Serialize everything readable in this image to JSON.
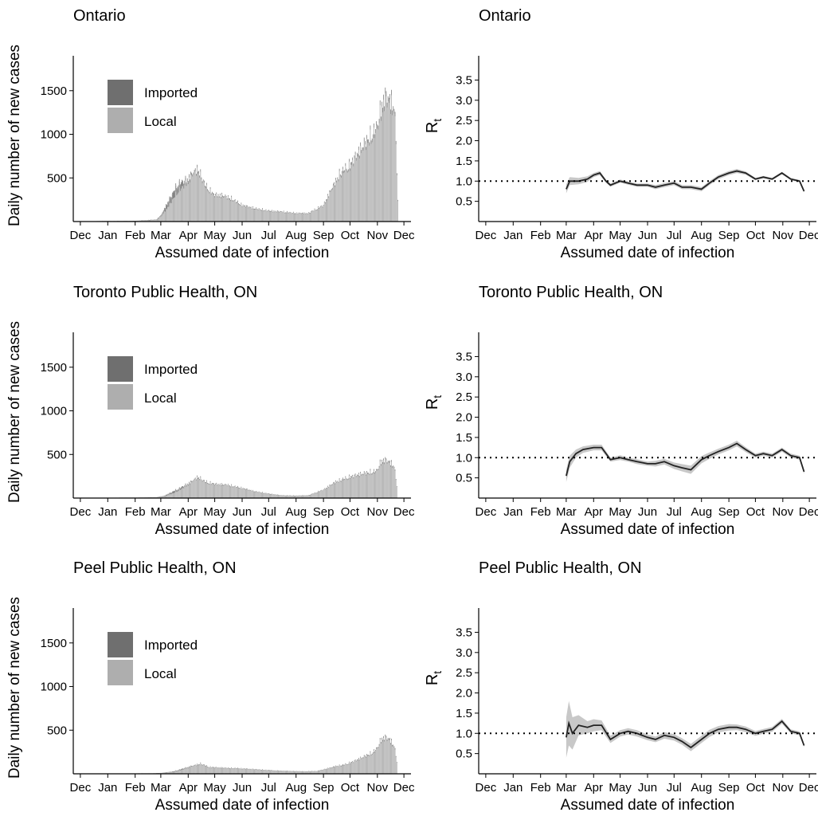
{
  "months": [
    "Dec",
    "Jan",
    "Feb",
    "Mar",
    "Apr",
    "May",
    "Jun",
    "Jul",
    "Aug",
    "Sep",
    "Oct",
    "Nov",
    "Dec"
  ],
  "colors": {
    "imported": "#6f6f6f",
    "local": "#aeaeae",
    "line": "#222222",
    "ribbon": "#c8c8c8",
    "axis": "#000000"
  },
  "chart_data": [
    {
      "type": "bar",
      "title": "Ontario",
      "xlabel": "Assumed date of infection",
      "ylabel": "Daily number of new cases",
      "yticks": [
        500,
        1000,
        1500
      ],
      "ylim": [
        0,
        1900
      ],
      "legend": {
        "position": "top-left",
        "entries": [
          "Imported",
          "Local"
        ]
      },
      "x": [
        "2019-12-20",
        "2020-01-01",
        "2020-02-01",
        "2020-02-25",
        "2020-03-01",
        "2020-03-10",
        "2020-03-20",
        "2020-03-31",
        "2020-04-05",
        "2020-04-12",
        "2020-04-20",
        "2020-04-30",
        "2020-05-10",
        "2020-05-20",
        "2020-06-01",
        "2020-06-15",
        "2020-07-01",
        "2020-07-15",
        "2020-08-01",
        "2020-08-15",
        "2020-09-01",
        "2020-09-10",
        "2020-09-20",
        "2020-10-01",
        "2020-10-10",
        "2020-10-20",
        "2020-10-31",
        "2020-11-05",
        "2020-11-10",
        "2020-11-15",
        "2020-11-20",
        "2020-11-22",
        "2020-11-24"
      ],
      "series": [
        {
          "name": "Imported",
          "values": [
            0,
            0,
            0,
            2,
            10,
            60,
            80,
            20,
            5,
            3,
            2,
            1,
            1,
            1,
            1,
            1,
            1,
            1,
            1,
            1,
            1,
            1,
            1,
            1,
            1,
            1,
            1,
            1,
            1,
            1,
            1,
            1,
            0
          ]
        },
        {
          "name": "Local",
          "values": [
            2,
            3,
            5,
            20,
            60,
            200,
            380,
            500,
            580,
            650,
            450,
            330,
            320,
            280,
            200,
            160,
            130,
            120,
            100,
            100,
            200,
            400,
            600,
            700,
            850,
            1000,
            1150,
            1400,
            1550,
            1500,
            1450,
            1000,
            250
          ]
        }
      ]
    },
    {
      "type": "line",
      "title": "Ontario",
      "xlabel": "Assumed date of infection",
      "ylabel": "R",
      "ylabel_subscript": "t",
      "yticks": [
        0.5,
        1.0,
        1.5,
        2.0,
        2.5,
        3.0,
        3.5
      ],
      "ylim": [
        0,
        4.1
      ],
      "reference_line": 1.0,
      "x": [
        "2020-03-01",
        "2020-03-05",
        "2020-03-15",
        "2020-03-25",
        "2020-04-01",
        "2020-04-08",
        "2020-04-15",
        "2020-04-20",
        "2020-05-01",
        "2020-05-10",
        "2020-05-20",
        "2020-06-01",
        "2020-06-10",
        "2020-06-20",
        "2020-07-01",
        "2020-07-10",
        "2020-07-20",
        "2020-08-01",
        "2020-08-10",
        "2020-08-20",
        "2020-09-01",
        "2020-09-10",
        "2020-09-20",
        "2020-10-01",
        "2020-10-10",
        "2020-10-20",
        "2020-10-31",
        "2020-11-10",
        "2020-11-20",
        "2020-11-25"
      ],
      "series": [
        {
          "name": "Rt",
          "values": [
            0.8,
            1.0,
            1.0,
            1.05,
            1.15,
            1.2,
            1.0,
            0.9,
            1.0,
            0.95,
            0.9,
            0.9,
            0.85,
            0.9,
            0.95,
            0.85,
            0.85,
            0.8,
            0.95,
            1.1,
            1.2,
            1.25,
            1.2,
            1.05,
            1.1,
            1.05,
            1.2,
            1.05,
            1.0,
            0.75
          ]
        },
        {
          "name": "Rt lower",
          "values": [
            0.7,
            0.9,
            0.92,
            0.98,
            1.1,
            1.15,
            0.96,
            0.86,
            0.96,
            0.91,
            0.86,
            0.86,
            0.8,
            0.85,
            0.9,
            0.8,
            0.8,
            0.75,
            0.9,
            1.05,
            1.15,
            1.2,
            1.16,
            1.02,
            1.07,
            1.02,
            1.17,
            1.02,
            0.97,
            0.72
          ]
        },
        {
          "name": "Rt upper",
          "values": [
            0.92,
            1.1,
            1.08,
            1.12,
            1.2,
            1.25,
            1.04,
            0.94,
            1.04,
            0.99,
            0.94,
            0.94,
            0.9,
            0.95,
            1.0,
            0.9,
            0.9,
            0.85,
            1.0,
            1.15,
            1.25,
            1.3,
            1.24,
            1.08,
            1.13,
            1.08,
            1.23,
            1.08,
            1.03,
            0.78
          ]
        }
      ]
    },
    {
      "type": "bar",
      "title": "Toronto Public Health, ON",
      "xlabel": "Assumed date of infection",
      "ylabel": "Daily number of new cases",
      "yticks": [
        500,
        1000,
        1500
      ],
      "ylim": [
        0,
        1900
      ],
      "legend": {
        "position": "top-left",
        "entries": [
          "Imported",
          "Local"
        ]
      },
      "x": [
        "2020-01-10",
        "2020-02-01",
        "2020-02-25",
        "2020-03-05",
        "2020-03-15",
        "2020-03-25",
        "2020-04-05",
        "2020-04-12",
        "2020-04-20",
        "2020-05-01",
        "2020-05-15",
        "2020-06-01",
        "2020-06-15",
        "2020-07-01",
        "2020-07-15",
        "2020-08-01",
        "2020-08-15",
        "2020-09-01",
        "2020-09-15",
        "2020-10-01",
        "2020-10-15",
        "2020-10-31",
        "2020-11-05",
        "2020-11-10",
        "2020-11-15",
        "2020-11-20",
        "2020-11-23"
      ],
      "series": [
        {
          "name": "Imported",
          "values": [
            0,
            0,
            1,
            5,
            20,
            15,
            3,
            2,
            1,
            1,
            1,
            1,
            1,
            1,
            1,
            1,
            1,
            1,
            1,
            1,
            1,
            1,
            1,
            1,
            1,
            1,
            0
          ]
        },
        {
          "name": "Local",
          "values": [
            1,
            2,
            5,
            20,
            60,
            120,
            200,
            260,
            200,
            170,
            160,
            120,
            80,
            50,
            30,
            25,
            30,
            100,
            200,
            260,
            300,
            330,
            450,
            470,
            440,
            400,
            150
          ]
        }
      ]
    },
    {
      "type": "line",
      "title": "Toronto Public Health, ON",
      "xlabel": "Assumed date of infection",
      "ylabel": "R",
      "ylabel_subscript": "t",
      "yticks": [
        0.5,
        1.0,
        1.5,
        2.0,
        2.5,
        3.0,
        3.5
      ],
      "ylim": [
        0,
        4.1
      ],
      "reference_line": 1.0,
      "x": [
        "2020-03-01",
        "2020-03-05",
        "2020-03-12",
        "2020-03-20",
        "2020-04-01",
        "2020-04-10",
        "2020-04-20",
        "2020-05-01",
        "2020-05-10",
        "2020-05-20",
        "2020-06-01",
        "2020-06-10",
        "2020-06-20",
        "2020-07-01",
        "2020-07-10",
        "2020-07-20",
        "2020-08-01",
        "2020-08-10",
        "2020-08-20",
        "2020-09-01",
        "2020-09-10",
        "2020-09-20",
        "2020-10-01",
        "2020-10-10",
        "2020-10-20",
        "2020-10-31",
        "2020-11-10",
        "2020-11-20",
        "2020-11-25"
      ],
      "series": [
        {
          "name": "Rt",
          "values": [
            0.55,
            0.9,
            1.1,
            1.2,
            1.25,
            1.25,
            0.95,
            1.0,
            0.95,
            0.9,
            0.85,
            0.85,
            0.9,
            0.8,
            0.75,
            0.7,
            0.95,
            1.05,
            1.15,
            1.25,
            1.35,
            1.2,
            1.05,
            1.1,
            1.05,
            1.2,
            1.05,
            1.0,
            0.65
          ]
        },
        {
          "name": "Rt lower",
          "values": [
            0.4,
            0.75,
            1.0,
            1.12,
            1.18,
            1.18,
            0.9,
            0.94,
            0.9,
            0.84,
            0.8,
            0.78,
            0.83,
            0.72,
            0.66,
            0.6,
            0.86,
            0.97,
            1.08,
            1.18,
            1.28,
            1.14,
            1.0,
            1.05,
            1.0,
            1.15,
            1.0,
            0.95,
            0.6
          ]
        },
        {
          "name": "Rt upper",
          "values": [
            0.7,
            1.05,
            1.2,
            1.28,
            1.32,
            1.32,
            1.0,
            1.06,
            1.0,
            0.96,
            0.9,
            0.92,
            0.97,
            0.88,
            0.84,
            0.8,
            1.04,
            1.13,
            1.22,
            1.32,
            1.42,
            1.26,
            1.1,
            1.15,
            1.1,
            1.25,
            1.1,
            1.05,
            0.7
          ]
        }
      ]
    },
    {
      "type": "bar",
      "title": "Peel Public Health, ON",
      "xlabel": "Assumed date of infection",
      "ylabel": "Daily number of new cases",
      "yticks": [
        500,
        1000,
        1500
      ],
      "ylim": [
        0,
        1900
      ],
      "legend": {
        "position": "top-left",
        "entries": [
          "Imported",
          "Local"
        ]
      },
      "x": [
        "2020-02-01",
        "2020-02-20",
        "2020-03-01",
        "2020-03-15",
        "2020-03-25",
        "2020-04-05",
        "2020-04-15",
        "2020-04-25",
        "2020-05-10",
        "2020-05-25",
        "2020-06-10",
        "2020-06-25",
        "2020-07-10",
        "2020-07-25",
        "2020-08-10",
        "2020-08-25",
        "2020-09-05",
        "2020-09-15",
        "2020-09-25",
        "2020-10-05",
        "2020-10-15",
        "2020-10-25",
        "2020-10-31",
        "2020-11-05",
        "2020-11-10",
        "2020-11-15",
        "2020-11-20",
        "2020-11-23"
      ],
      "series": [
        {
          "name": "Imported",
          "values": [
            0,
            0,
            1,
            5,
            8,
            3,
            2,
            1,
            1,
            1,
            1,
            1,
            1,
            1,
            1,
            1,
            1,
            1,
            1,
            1,
            1,
            1,
            1,
            1,
            1,
            1,
            1,
            0
          ]
        },
        {
          "name": "Local",
          "values": [
            1,
            2,
            5,
            20,
            50,
            90,
            120,
            80,
            70,
            65,
            55,
            45,
            35,
            30,
            25,
            30,
            60,
            90,
            110,
            150,
            200,
            250,
            300,
            420,
            450,
            420,
            350,
            150
          ]
        }
      ]
    },
    {
      "type": "line",
      "title": "Peel Public Health, ON",
      "xlabel": "Assumed date of infection",
      "ylabel": "R",
      "ylabel_subscript": "t",
      "yticks": [
        0.5,
        1.0,
        1.5,
        2.0,
        2.5,
        3.0,
        3.5
      ],
      "ylim": [
        0,
        4.1
      ],
      "reference_line": 1.0,
      "x": [
        "2020-03-01",
        "2020-03-04",
        "2020-03-08",
        "2020-03-15",
        "2020-03-25",
        "2020-04-01",
        "2020-04-10",
        "2020-04-20",
        "2020-05-01",
        "2020-05-10",
        "2020-05-20",
        "2020-06-01",
        "2020-06-10",
        "2020-06-20",
        "2020-07-01",
        "2020-07-10",
        "2020-07-20",
        "2020-08-01",
        "2020-08-10",
        "2020-08-20",
        "2020-09-01",
        "2020-09-10",
        "2020-09-20",
        "2020-10-01",
        "2020-10-10",
        "2020-10-20",
        "2020-10-31",
        "2020-11-10",
        "2020-11-20",
        "2020-11-25"
      ],
      "series": [
        {
          "name": "Rt",
          "values": [
            0.9,
            1.25,
            1.0,
            1.2,
            1.15,
            1.2,
            1.2,
            0.85,
            1.0,
            1.05,
            1.0,
            0.9,
            0.85,
            0.95,
            0.9,
            0.8,
            0.65,
            0.85,
            1.0,
            1.1,
            1.15,
            1.15,
            1.1,
            1.0,
            1.05,
            1.1,
            1.3,
            1.05,
            1.0,
            0.7
          ]
        },
        {
          "name": "Rt lower",
          "values": [
            0.4,
            0.7,
            0.6,
            0.95,
            1.0,
            1.05,
            1.08,
            0.76,
            0.92,
            0.97,
            0.92,
            0.83,
            0.78,
            0.87,
            0.82,
            0.72,
            0.56,
            0.76,
            0.91,
            1.02,
            1.07,
            1.08,
            1.03,
            0.94,
            0.99,
            1.04,
            1.24,
            1.0,
            0.95,
            0.66
          ]
        },
        {
          "name": "Rt upper",
          "values": [
            1.4,
            1.8,
            1.4,
            1.45,
            1.3,
            1.35,
            1.32,
            0.94,
            1.08,
            1.13,
            1.08,
            0.97,
            0.92,
            1.03,
            0.98,
            0.88,
            0.74,
            0.94,
            1.09,
            1.18,
            1.23,
            1.22,
            1.17,
            1.06,
            1.11,
            1.16,
            1.36,
            1.1,
            1.05,
            0.74
          ]
        }
      ]
    }
  ]
}
